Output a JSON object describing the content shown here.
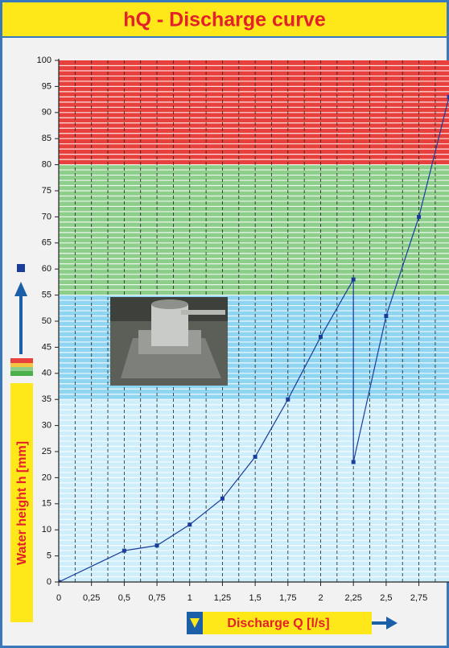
{
  "chart_data": {
    "type": "line",
    "title": "hQ - Discharge curve",
    "x_label": "Discharge Q [l/s]",
    "y_label": "Water height h [mm]",
    "xlim": [
      0,
      2.98
    ],
    "ylim": [
      0,
      100
    ],
    "xticks": [
      0,
      {
        "value": 0.25,
        "label": "0,25"
      },
      {
        "value": 0.5,
        "label": "0,5"
      },
      {
        "value": 0.75,
        "label": "0,75"
      },
      1,
      {
        "value": 1.25,
        "label": "1,25"
      },
      {
        "value": 1.5,
        "label": "1,5"
      },
      {
        "value": 1.75,
        "label": "1,75"
      },
      2,
      {
        "value": 2.25,
        "label": "2,25"
      },
      {
        "value": 2.5,
        "label": "2,5"
      },
      {
        "value": 2.75,
        "label": "2,75"
      }
    ],
    "yticks": [
      0,
      5,
      10,
      15,
      20,
      25,
      30,
      35,
      40,
      45,
      50,
      55,
      60,
      65,
      70,
      75,
      80,
      85,
      90,
      95,
      100
    ],
    "bands": [
      {
        "from": 0,
        "to": 35,
        "color": "#cfeefb"
      },
      {
        "from": 35,
        "to": 55,
        "color": "#8fd4f0"
      },
      {
        "from": 55,
        "to": 80,
        "color": "#8dcf8a"
      },
      {
        "from": 80,
        "to": 100,
        "color": "#e8403c"
      }
    ],
    "grid": true,
    "series": [
      {
        "color": "#1b3e9a",
        "x": [
          0,
          0.5,
          0.75,
          1,
          1.25,
          1.5,
          1.75,
          2,
          2.25,
          2.25,
          2.5,
          2.75,
          2.98
        ],
        "y": [
          0,
          6,
          7,
          11,
          16,
          24,
          35,
          47,
          58,
          23,
          51,
          70,
          93
        ]
      }
    ]
  }
}
